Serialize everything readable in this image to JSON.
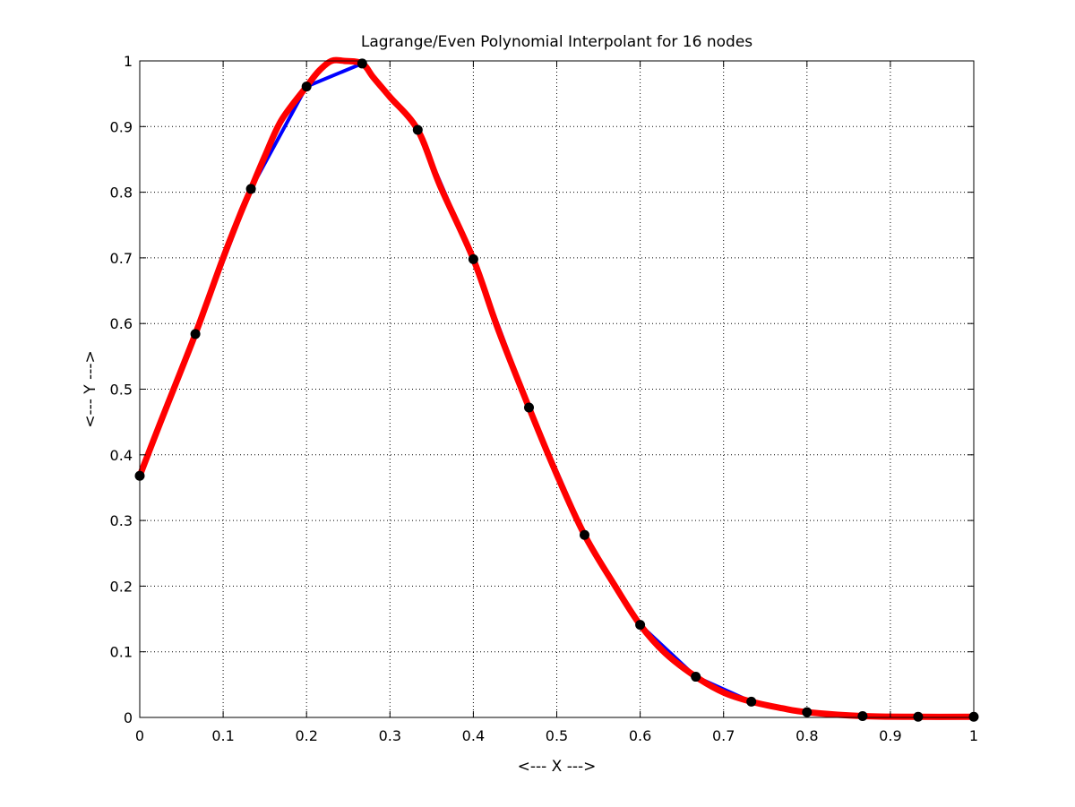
{
  "chart_data": {
    "type": "line",
    "title": "Lagrange/Even Polynomial Interpolant for 16 nodes",
    "xlabel": "<--- X --->",
    "ylabel": "<--- Y --->",
    "xlim": [
      0,
      1
    ],
    "ylim": [
      0,
      1
    ],
    "grid": true,
    "grid_style": "dotted",
    "x_ticks": [
      0,
      0.1,
      0.2,
      0.3,
      0.4,
      0.5,
      0.6,
      0.7,
      0.8,
      0.9,
      1
    ],
    "x_tick_labels": [
      "0",
      "0.1",
      "0.2",
      "0.3",
      "0.4",
      "0.5",
      "0.6",
      "0.7",
      "0.8",
      "0.9",
      "1"
    ],
    "y_ticks": [
      0,
      0.1,
      0.2,
      0.3,
      0.4,
      0.5,
      0.6,
      0.7,
      0.8,
      0.9,
      1
    ],
    "y_tick_labels": [
      "0",
      "0.1",
      "0.2",
      "0.3",
      "0.4",
      "0.5",
      "0.6",
      "0.7",
      "0.8",
      "0.9",
      "1"
    ],
    "series": [
      {
        "kind": "piecewise-linear",
        "color": "#0000ff",
        "x": [
          0,
          0.0667,
          0.1333,
          0.2,
          0.2667,
          0.3333,
          0.4,
          0.4667,
          0.5333,
          0.6,
          0.6667,
          0.7333,
          0.8,
          0.8667,
          0.9333,
          1
        ],
        "y": [
          0.368,
          0.584,
          0.805,
          0.961,
          0.996,
          0.895,
          0.698,
          0.472,
          0.278,
          0.141,
          0.062,
          0.024,
          0.008,
          0.002,
          0.001,
          0.001
        ]
      },
      {
        "kind": "interpolant",
        "color": "#ff0000",
        "x": [
          0,
          0.025,
          0.05,
          0.0667,
          0.08,
          0.1,
          0.12,
          0.1333,
          0.15,
          0.17,
          0.2,
          0.215,
          0.23,
          0.245,
          0.2667,
          0.28,
          0.3,
          0.3333,
          0.36,
          0.4,
          0.43,
          0.4667,
          0.5,
          0.5333,
          0.57,
          0.6,
          0.63,
          0.6667,
          0.7,
          0.7333,
          0.77,
          0.8,
          0.8667,
          0.9333,
          1
        ],
        "y": [
          0.368,
          0.45,
          0.53,
          0.584,
          0.63,
          0.7,
          0.765,
          0.805,
          0.855,
          0.91,
          0.961,
          0.985,
          1.0,
          1.0,
          0.996,
          0.975,
          0.945,
          0.895,
          0.81,
          0.698,
          0.59,
          0.472,
          0.37,
          0.278,
          0.2,
          0.141,
          0.098,
          0.062,
          0.038,
          0.024,
          0.014,
          0.008,
          0.002,
          0.001,
          0.001
        ]
      },
      {
        "kind": "nodes",
        "color": "#000000",
        "x": [
          0,
          0.0667,
          0.1333,
          0.2,
          0.2667,
          0.3333,
          0.4,
          0.4667,
          0.5333,
          0.6,
          0.6667,
          0.7333,
          0.8,
          0.8667,
          0.9333,
          1
        ],
        "y": [
          0.368,
          0.584,
          0.805,
          0.961,
          0.996,
          0.895,
          0.698,
          0.472,
          0.278,
          0.141,
          0.062,
          0.024,
          0.008,
          0.002,
          0.001,
          0.001
        ]
      }
    ]
  }
}
